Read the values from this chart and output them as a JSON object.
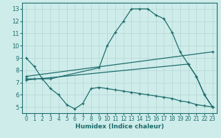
{
  "background_color": "#ceecea",
  "grid_color": "#b8d8d5",
  "line_color": "#1a6b6b",
  "xlabel": "Humidex (Indice chaleur)",
  "xlim": [
    -0.5,
    23.5
  ],
  "ylim": [
    4.5,
    13.5
  ],
  "yticks": [
    5,
    6,
    7,
    8,
    9,
    10,
    11,
    12,
    13
  ],
  "xticks": [
    0,
    1,
    2,
    3,
    4,
    5,
    6,
    7,
    8,
    9,
    10,
    11,
    12,
    13,
    14,
    15,
    16,
    17,
    18,
    19,
    20,
    21,
    22,
    23
  ],
  "lines": [
    {
      "x": [
        0,
        1,
        2,
        3,
        9,
        10,
        11,
        12,
        13,
        14,
        15,
        16,
        17,
        18,
        19,
        20,
        21,
        22,
        23
      ],
      "y": [
        9.0,
        8.3,
        7.3,
        7.3,
        8.2,
        10.0,
        11.1,
        12.0,
        13.0,
        13.0,
        13.0,
        12.5,
        12.2,
        11.1,
        9.5,
        8.5,
        7.5,
        6.0,
        5.0
      ]
    },
    {
      "x": [
        0,
        23
      ],
      "y": [
        7.5,
        9.5
      ]
    },
    {
      "x": [
        0,
        20,
        21,
        22,
        23
      ],
      "y": [
        7.2,
        8.5,
        7.5,
        6.0,
        5.0
      ]
    },
    {
      "x": [
        0,
        1,
        2,
        3,
        4,
        5,
        6,
        7,
        8,
        9,
        10,
        11,
        12,
        13,
        14,
        15,
        16,
        17,
        18,
        19,
        20,
        21,
        22,
        23
      ],
      "y": [
        7.3,
        7.3,
        7.3,
        6.5,
        6.0,
        5.2,
        4.85,
        5.3,
        6.5,
        6.6,
        6.5,
        6.4,
        6.3,
        6.2,
        6.1,
        6.0,
        5.9,
        5.8,
        5.7,
        5.5,
        5.4,
        5.2,
        5.1,
        5.0
      ]
    }
  ]
}
